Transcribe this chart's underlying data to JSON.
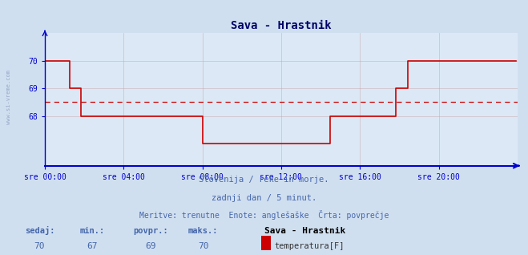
{
  "title": "Sava - Hrastnik",
  "bg_color": "#d0dff0",
  "plot_bg_color": "#dce8f5",
  "line_color": "#cc0000",
  "avg_line_color": "#cc0000",
  "avg_value": 68.5,
  "y_min": 66.2,
  "y_max": 71.0,
  "y_ticks": [
    68,
    69,
    70
  ],
  "y_tick_labels": [
    "68",
    "69",
    "70"
  ],
  "x_tick_labels": [
    "sre 00:00",
    "sre 04:00",
    "sre 08:00",
    "sre 12:00",
    "sre 16:00",
    "sre 20:00"
  ],
  "x_ticks_pos": [
    0,
    48,
    96,
    144,
    192,
    240
  ],
  "total_points": 288,
  "subtitle1": "Slovenija / reke in morje.",
  "subtitle2": "zadnji dan / 5 minut.",
  "subtitle3": "Meritve: trenutne  Enote: anglešaške  Črta: povprečje",
  "legend_title": "Sava - Hrastnik",
  "legend_label": "temperatura[F]",
  "legend_color": "#cc0000",
  "footer_labels": [
    "sedaj:",
    "min.:",
    "povpr.:",
    "maks.:"
  ],
  "footer_values": [
    "70",
    "67",
    "69",
    "70"
  ],
  "side_label": "www.si-vreme.com",
  "grid_color": "#c8a0a0",
  "axis_color": "#0000cc",
  "text_color": "#4466aa",
  "title_color": "#000066",
  "temperature_data": [
    70,
    70,
    70,
    70,
    70,
    70,
    70,
    70,
    70,
    70,
    70,
    70,
    70,
    70,
    70,
    69,
    69,
    69,
    69,
    69,
    69,
    69,
    68,
    68,
    68,
    68,
    68,
    68,
    68,
    68,
    68,
    68,
    68,
    68,
    68,
    68,
    68,
    68,
    68,
    68,
    68,
    68,
    68,
    68,
    68,
    68,
    68,
    68,
    68,
    68,
    68,
    68,
    68,
    68,
    68,
    68,
    68,
    68,
    68,
    68,
    68,
    68,
    68,
    68,
    68,
    68,
    68,
    68,
    68,
    68,
    68,
    68,
    68,
    68,
    68,
    68,
    68,
    68,
    68,
    68,
    68,
    68,
    68,
    68,
    68,
    68,
    68,
    68,
    68,
    68,
    68,
    68,
    68,
    68,
    68,
    68,
    67,
    67,
    67,
    67,
    67,
    67,
    67,
    67,
    67,
    67,
    67,
    67,
    67,
    67,
    67,
    67,
    67,
    67,
    67,
    67,
    67,
    67,
    67,
    67,
    67,
    67,
    67,
    67,
    67,
    67,
    67,
    67,
    67,
    67,
    67,
    67,
    67,
    67,
    67,
    67,
    67,
    67,
    67,
    67,
    67,
    67,
    67,
    67,
    67,
    67,
    67,
    67,
    67,
    67,
    67,
    67,
    67,
    67,
    67,
    67,
    67,
    67,
    67,
    67,
    67,
    67,
    67,
    67,
    67,
    67,
    67,
    67,
    67,
    67,
    67,
    67,
    67,
    67,
    68,
    68,
    68,
    68,
    68,
    68,
    68,
    68,
    68,
    68,
    68,
    68,
    68,
    68,
    68,
    68,
    68,
    68,
    68,
    68,
    68,
    68,
    68,
    68,
    68,
    68,
    68,
    68,
    68,
    68,
    68,
    68,
    68,
    68,
    68,
    68,
    68,
    68,
    68,
    68,
    69,
    69,
    69,
    69,
    69,
    69,
    69,
    70,
    70,
    70,
    70,
    70,
    70,
    70,
    70,
    70,
    70,
    70,
    70,
    70,
    70,
    70,
    70,
    70,
    70,
    70,
    70,
    70,
    70,
    70,
    70,
    70,
    70,
    70,
    70,
    70,
    70,
    70,
    70,
    70,
    70,
    70,
    70,
    70,
    70,
    70,
    70,
    70,
    70,
    70,
    70,
    70,
    70,
    70,
    70,
    70,
    70,
    70,
    70,
    70,
    70,
    70,
    70,
    70,
    70,
    70,
    70,
    70,
    70,
    70,
    70,
    70,
    70,
    70
  ]
}
